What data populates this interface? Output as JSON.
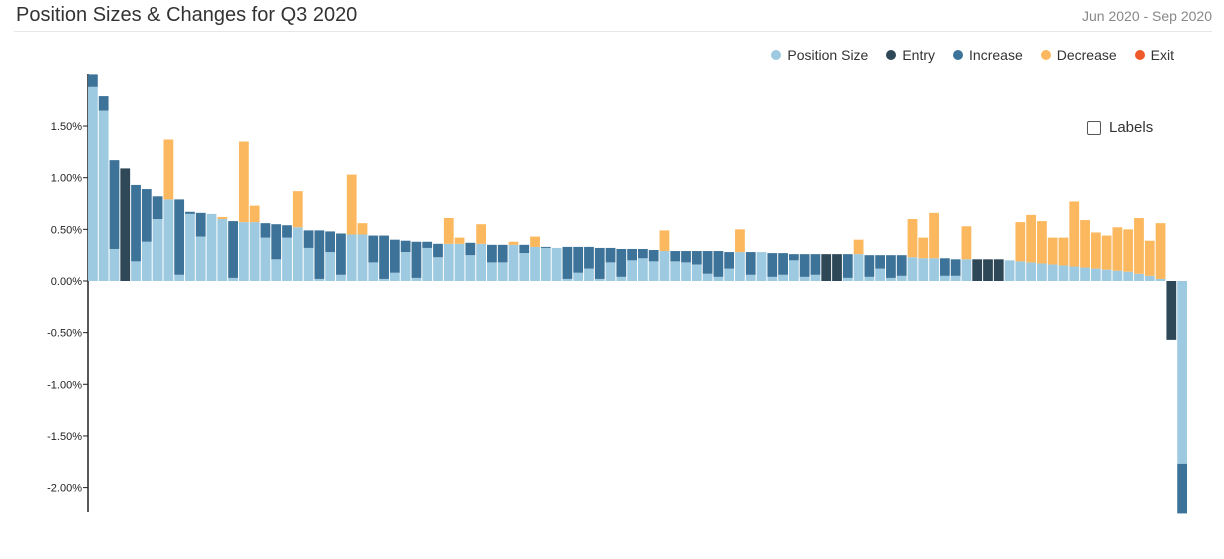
{
  "header": {
    "title": "Position Sizes & Changes for Q3 2020",
    "date_range": "Jun 2020 - Sep 2020"
  },
  "legend": [
    {
      "key": "size",
      "label": "Position Size",
      "color": "#9ecae1"
    },
    {
      "key": "entry",
      "label": "Entry",
      "color": "#2f4858"
    },
    {
      "key": "increase",
      "label": "Increase",
      "color": "#3d7399"
    },
    {
      "key": "decrease",
      "label": "Decrease",
      "color": "#fcb85e"
    },
    {
      "key": "exit",
      "label": "Exit",
      "color": "#ee5a2c"
    }
  ],
  "controls": {
    "labels_toggle": "Labels"
  },
  "chart_data": {
    "type": "bar",
    "stacked": true,
    "ylim": [
      -2.25,
      2.0
    ],
    "y_ticks": [
      1.5,
      1.0,
      0.5,
      0.0,
      -0.5,
      -1.0,
      -1.5,
      -2.0
    ],
    "y_tick_labels": [
      "1.50%",
      "1.00%",
      "0.50%",
      "0.00%",
      "-0.50%",
      "-1.00%",
      "-1.50%",
      "-2.00%"
    ],
    "legend_position": "top-right",
    "grid": false,
    "series_order": [
      "Position Size",
      "Entry",
      "Increase",
      "Decrease",
      "Exit"
    ],
    "positions": [
      {
        "size": 1.88,
        "change": 0.12,
        "type": "increase"
      },
      {
        "size": 1.65,
        "change": 0.14,
        "type": "increase"
      },
      {
        "size": 0.31,
        "change": 0.86,
        "type": "increase"
      },
      {
        "size": 0.0,
        "change": 1.09,
        "type": "entry"
      },
      {
        "size": 0.19,
        "change": 0.74,
        "type": "increase"
      },
      {
        "size": 0.38,
        "change": 0.51,
        "type": "increase"
      },
      {
        "size": 0.6,
        "change": 0.22,
        "type": "increase"
      },
      {
        "size": 0.79,
        "change": 0.58,
        "type": "decrease"
      },
      {
        "size": 0.06,
        "change": 0.73,
        "type": "increase"
      },
      {
        "size": 0.65,
        "change": 0.02,
        "type": "increase"
      },
      {
        "size": 0.43,
        "change": 0.23,
        "type": "increase"
      },
      {
        "size": 0.65,
        "change": 0.0,
        "type": "none"
      },
      {
        "size": 0.6,
        "change": 0.02,
        "type": "decrease"
      },
      {
        "size": 0.03,
        "change": 0.55,
        "type": "increase"
      },
      {
        "size": 0.57,
        "change": 0.78,
        "type": "decrease"
      },
      {
        "size": 0.57,
        "change": 0.16,
        "type": "decrease"
      },
      {
        "size": 0.42,
        "change": 0.14,
        "type": "increase"
      },
      {
        "size": 0.21,
        "change": 0.34,
        "type": "increase"
      },
      {
        "size": 0.42,
        "change": 0.12,
        "type": "increase"
      },
      {
        "size": 0.52,
        "change": 0.35,
        "type": "decrease"
      },
      {
        "size": 0.32,
        "change": 0.17,
        "type": "increase"
      },
      {
        "size": 0.02,
        "change": 0.47,
        "type": "increase"
      },
      {
        "size": 0.28,
        "change": 0.2,
        "type": "increase"
      },
      {
        "size": 0.06,
        "change": 0.4,
        "type": "increase"
      },
      {
        "size": 0.45,
        "change": 0.58,
        "type": "decrease"
      },
      {
        "size": 0.45,
        "change": 0.11,
        "type": "decrease"
      },
      {
        "size": 0.18,
        "change": 0.26,
        "type": "increase"
      },
      {
        "size": 0.02,
        "change": 0.42,
        "type": "increase"
      },
      {
        "size": 0.08,
        "change": 0.32,
        "type": "increase"
      },
      {
        "size": 0.28,
        "change": 0.11,
        "type": "increase"
      },
      {
        "size": 0.03,
        "change": 0.35,
        "type": "increase"
      },
      {
        "size": 0.32,
        "change": 0.06,
        "type": "increase"
      },
      {
        "size": 0.23,
        "change": 0.13,
        "type": "increase"
      },
      {
        "size": 0.36,
        "change": 0.25,
        "type": "decrease"
      },
      {
        "size": 0.36,
        "change": 0.06,
        "type": "decrease"
      },
      {
        "size": 0.25,
        "change": 0.12,
        "type": "increase"
      },
      {
        "size": 0.36,
        "change": 0.19,
        "type": "decrease"
      },
      {
        "size": 0.18,
        "change": 0.17,
        "type": "increase"
      },
      {
        "size": 0.18,
        "change": 0.17,
        "type": "increase"
      },
      {
        "size": 0.35,
        "change": 0.03,
        "type": "decrease"
      },
      {
        "size": 0.27,
        "change": 0.08,
        "type": "increase"
      },
      {
        "size": 0.33,
        "change": 0.1,
        "type": "decrease"
      },
      {
        "size": 0.32,
        "change": 0.01,
        "type": "increase"
      },
      {
        "size": 0.32,
        "change": 0.0,
        "type": "none"
      },
      {
        "size": 0.02,
        "change": 0.31,
        "type": "increase"
      },
      {
        "size": 0.08,
        "change": 0.25,
        "type": "increase"
      },
      {
        "size": 0.12,
        "change": 0.21,
        "type": "increase"
      },
      {
        "size": 0.02,
        "change": 0.3,
        "type": "increase"
      },
      {
        "size": 0.18,
        "change": 0.14,
        "type": "increase"
      },
      {
        "size": 0.04,
        "change": 0.27,
        "type": "increase"
      },
      {
        "size": 0.2,
        "change": 0.11,
        "type": "increase"
      },
      {
        "size": 0.22,
        "change": 0.09,
        "type": "increase"
      },
      {
        "size": 0.19,
        "change": 0.11,
        "type": "increase"
      },
      {
        "size": 0.29,
        "change": 0.2,
        "type": "decrease"
      },
      {
        "size": 0.19,
        "change": 0.1,
        "type": "increase"
      },
      {
        "size": 0.18,
        "change": 0.11,
        "type": "increase"
      },
      {
        "size": 0.16,
        "change": 0.13,
        "type": "increase"
      },
      {
        "size": 0.07,
        "change": 0.22,
        "type": "increase"
      },
      {
        "size": 0.04,
        "change": 0.25,
        "type": "increase"
      },
      {
        "size": 0.12,
        "change": 0.16,
        "type": "increase"
      },
      {
        "size": 0.28,
        "change": 0.22,
        "type": "decrease"
      },
      {
        "size": 0.06,
        "change": 0.22,
        "type": "increase"
      },
      {
        "size": 0.28,
        "change": 0.0,
        "type": "none"
      },
      {
        "size": 0.04,
        "change": 0.23,
        "type": "increase"
      },
      {
        "size": 0.06,
        "change": 0.21,
        "type": "increase"
      },
      {
        "size": 0.2,
        "change": 0.06,
        "type": "increase"
      },
      {
        "size": 0.04,
        "change": 0.22,
        "type": "increase"
      },
      {
        "size": 0.06,
        "change": 0.2,
        "type": "increase"
      },
      {
        "size": 0.0,
        "change": 0.26,
        "type": "entry"
      },
      {
        "size": 0.0,
        "change": 0.26,
        "type": "entry"
      },
      {
        "size": 0.03,
        "change": 0.23,
        "type": "increase"
      },
      {
        "size": 0.26,
        "change": 0.14,
        "type": "decrease"
      },
      {
        "size": 0.04,
        "change": 0.21,
        "type": "increase"
      },
      {
        "size": 0.12,
        "change": 0.13,
        "type": "increase"
      },
      {
        "size": 0.03,
        "change": 0.22,
        "type": "increase"
      },
      {
        "size": 0.05,
        "change": 0.2,
        "type": "increase"
      },
      {
        "size": 0.23,
        "change": 0.37,
        "type": "decrease"
      },
      {
        "size": 0.22,
        "change": 0.2,
        "type": "decrease"
      },
      {
        "size": 0.22,
        "change": 0.44,
        "type": "decrease"
      },
      {
        "size": 0.05,
        "change": 0.17,
        "type": "increase"
      },
      {
        "size": 0.05,
        "change": 0.16,
        "type": "increase"
      },
      {
        "size": 0.21,
        "change": 0.32,
        "type": "decrease"
      },
      {
        "size": 0.0,
        "change": 0.21,
        "type": "entry"
      },
      {
        "size": 0.0,
        "change": 0.21,
        "type": "entry"
      },
      {
        "size": 0.0,
        "change": 0.21,
        "type": "entry"
      },
      {
        "size": 0.2,
        "change": 0.0,
        "type": "none"
      },
      {
        "size": 0.19,
        "change": 0.38,
        "type": "decrease"
      },
      {
        "size": 0.18,
        "change": 0.46,
        "type": "decrease"
      },
      {
        "size": 0.17,
        "change": 0.41,
        "type": "decrease"
      },
      {
        "size": 0.16,
        "change": 0.26,
        "type": "decrease"
      },
      {
        "size": 0.15,
        "change": 0.27,
        "type": "decrease"
      },
      {
        "size": 0.14,
        "change": 0.63,
        "type": "decrease"
      },
      {
        "size": 0.13,
        "change": 0.46,
        "type": "decrease"
      },
      {
        "size": 0.12,
        "change": 0.35,
        "type": "decrease"
      },
      {
        "size": 0.11,
        "change": 0.33,
        "type": "decrease"
      },
      {
        "size": 0.1,
        "change": 0.42,
        "type": "decrease"
      },
      {
        "size": 0.09,
        "change": 0.41,
        "type": "decrease"
      },
      {
        "size": 0.07,
        "change": 0.54,
        "type": "decrease"
      },
      {
        "size": 0.05,
        "change": 0.34,
        "type": "decrease"
      },
      {
        "size": 0.02,
        "change": 0.54,
        "type": "decrease"
      },
      {
        "size": 0.0,
        "change": -0.57,
        "type": "entry"
      },
      {
        "size": -1.77,
        "change": -0.48,
        "type": "increase"
      }
    ]
  }
}
